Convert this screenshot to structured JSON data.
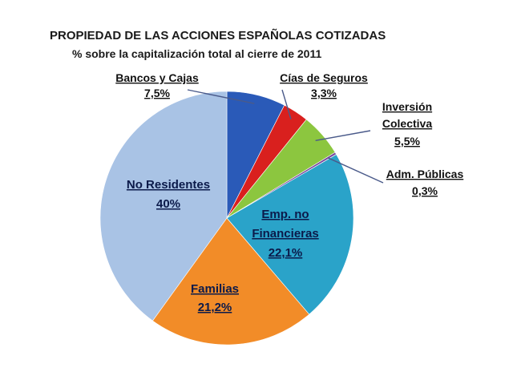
{
  "chart_data": {
    "type": "pie",
    "title": "PROPIEDAD DE LAS ACCIONES ESPAÑOLAS COTIZADAS",
    "subtitle": "% sobre la capitalización total al cierre de 2011",
    "slices": [
      {
        "name": "Bancos y Cajas",
        "value": 7.5,
        "label": "7,5%",
        "color": "#2a5ab8"
      },
      {
        "name": "Cías de Seguros",
        "value": 3.3,
        "label": "3,3%",
        "color": "#d9201e"
      },
      {
        "name": "Inversión Colectiva",
        "value": 5.5,
        "label": "5,5%",
        "color": "#8cc63f"
      },
      {
        "name": "Adm. Públicas",
        "value": 0.3,
        "label": "0,3%",
        "color": "#7a4aa0"
      },
      {
        "name": "Emp. no Financieras",
        "value": 22.1,
        "label": "22,1%",
        "color": "#2aa3c9"
      },
      {
        "name": "Familias",
        "value": 21.2,
        "label": "21,2%",
        "color": "#f28c28"
      },
      {
        "name": "No Residentes",
        "value": 40,
        "label": "40%",
        "color": "#a9c3e5"
      }
    ]
  }
}
